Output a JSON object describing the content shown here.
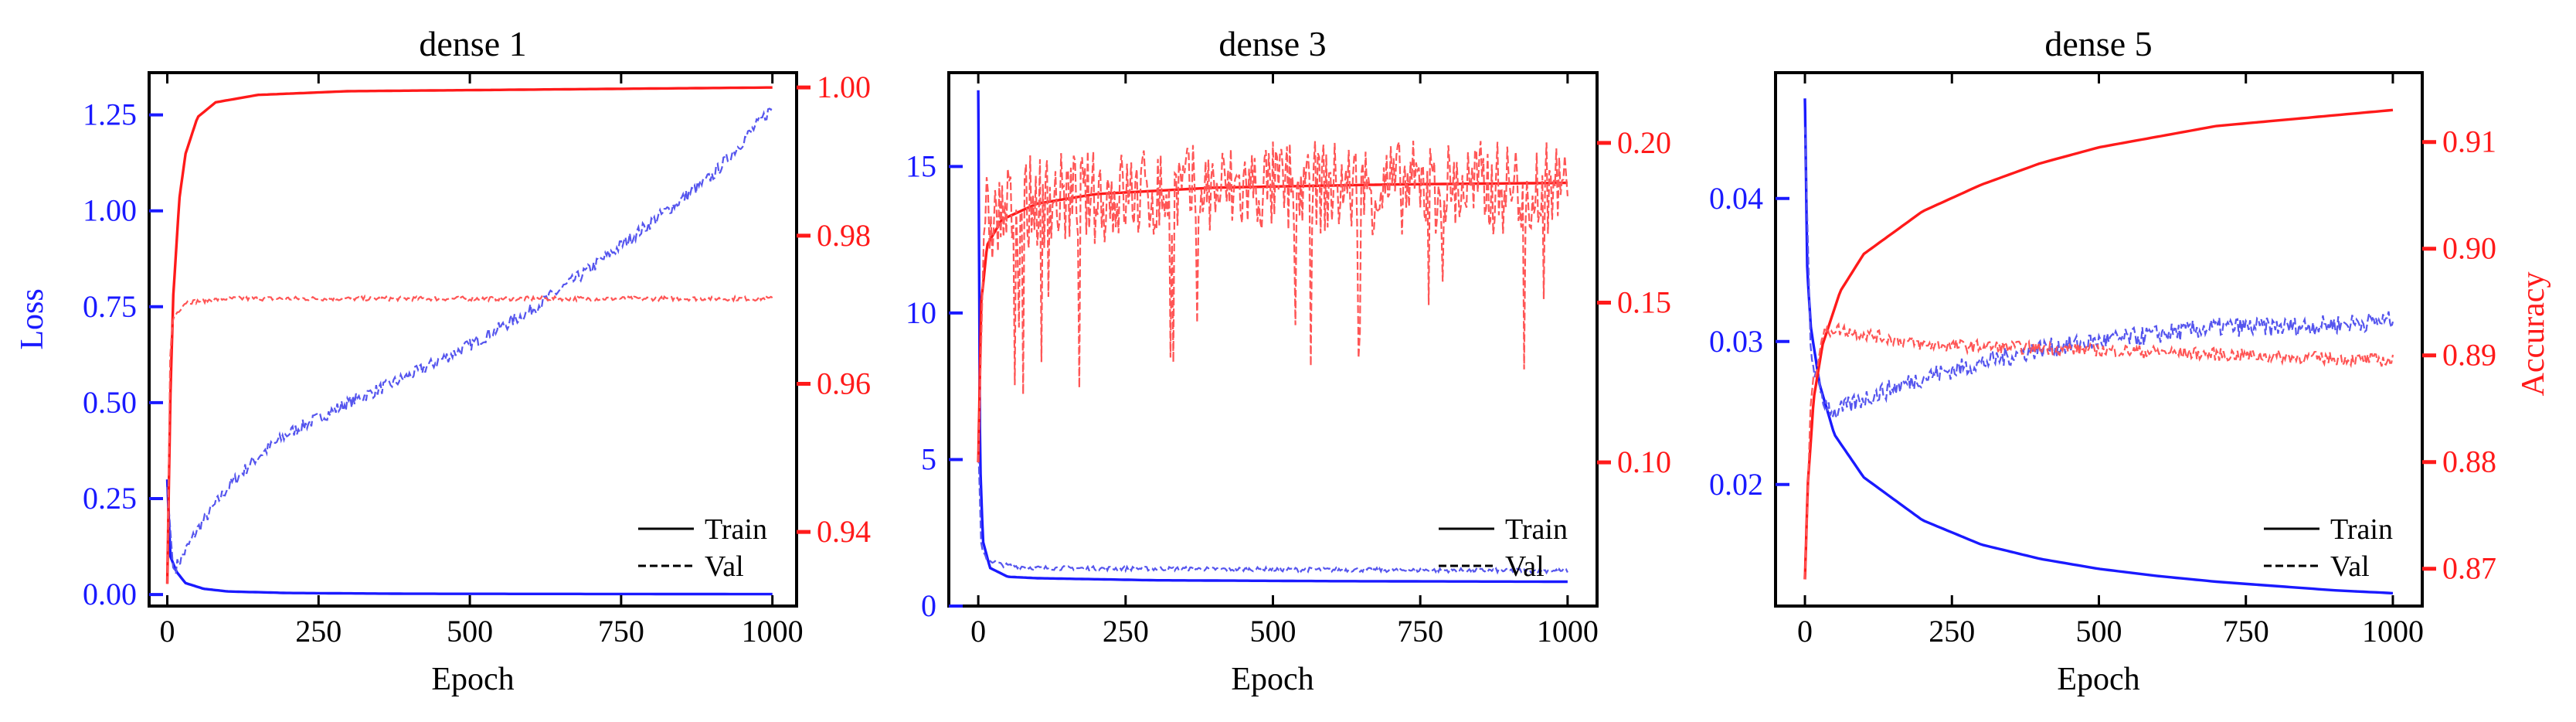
{
  "figure": {
    "charts": [
      {
        "title": "dense 1"
      },
      {
        "title": "dense 3"
      },
      {
        "title": "dense 5"
      }
    ]
  },
  "chart_data": [
    {
      "type": "line",
      "title": "dense 1",
      "xlabel": "Epoch",
      "ylabel_left": "Loss",
      "ylabel_right": "",
      "x_ticks": [
        0,
        250,
        500,
        750,
        1000
      ],
      "xlim": [
        -30,
        1040
      ],
      "left_ylim": [
        -0.03,
        1.36
      ],
      "left_ticks": [
        0.0,
        0.25,
        0.5,
        0.75,
        1.0,
        1.25
      ],
      "left_tick_labels": [
        "0.00",
        "0.25",
        "0.50",
        "0.75",
        "1.00",
        "1.25"
      ],
      "right_ylim": [
        0.93,
        1.002
      ],
      "right_ticks": [
        0.94,
        0.96,
        0.98,
        1.0
      ],
      "right_tick_labels": [
        "0.94",
        "0.96",
        "0.98",
        "1.00"
      ],
      "legend": {
        "position": "bottom-right",
        "entries": [
          "Train",
          "Val"
        ]
      },
      "series": [
        {
          "name": "Train",
          "metric": "loss",
          "axis": "left",
          "style": "solid",
          "points": [
            [
              0,
              0.3
            ],
            [
              5,
              0.1
            ],
            [
              15,
              0.06
            ],
            [
              30,
              0.03
            ],
            [
              60,
              0.015
            ],
            [
              100,
              0.008
            ],
            [
              200,
              0.004
            ],
            [
              400,
              0.002
            ],
            [
              700,
              0.0015
            ],
            [
              1000,
              0.001
            ]
          ]
        },
        {
          "name": "Val",
          "metric": "loss",
          "axis": "left",
          "style": "dashed",
          "points": [
            [
              0,
              0.28
            ],
            [
              10,
              0.06
            ],
            [
              25,
              0.1
            ],
            [
              50,
              0.17
            ],
            [
              100,
              0.28
            ],
            [
              150,
              0.36
            ],
            [
              200,
              0.42
            ],
            [
              300,
              0.5
            ],
            [
              400,
              0.57
            ],
            [
              500,
              0.65
            ],
            [
              600,
              0.74
            ],
            [
              700,
              0.85
            ],
            [
              800,
              0.97
            ],
            [
              900,
              1.09
            ],
            [
              1000,
              1.27
            ]
          ]
        },
        {
          "name": "Train",
          "metric": "accuracy",
          "axis": "right",
          "style": "solid",
          "points": [
            [
              0,
              0.933
            ],
            [
              5,
              0.958
            ],
            [
              10,
              0.972
            ],
            [
              20,
              0.985
            ],
            [
              30,
              0.991
            ],
            [
              50,
              0.996
            ],
            [
              80,
              0.998
            ],
            [
              150,
              0.999
            ],
            [
              300,
              0.9995
            ],
            [
              1000,
              1.0
            ]
          ]
        },
        {
          "name": "Val",
          "metric": "accuracy",
          "axis": "right",
          "style": "dashed",
          "points": [
            [
              0,
              0.933
            ],
            [
              5,
              0.965
            ],
            [
              10,
              0.969
            ],
            [
              30,
              0.971
            ],
            [
              100,
              0.9715
            ],
            [
              500,
              0.9715
            ],
            [
              1000,
              0.9715
            ]
          ]
        }
      ]
    },
    {
      "type": "line",
      "title": "dense 3",
      "xlabel": "Epoch",
      "ylabel_left": "",
      "ylabel_right": "",
      "x_ticks": [
        0,
        250,
        500,
        750,
        1000
      ],
      "xlim": [
        -50,
        1050
      ],
      "left_ylim": [
        0,
        18.2
      ],
      "left_ticks": [
        0,
        5,
        10,
        15
      ],
      "left_tick_labels": [
        "0",
        "5",
        "10",
        "15"
      ],
      "right_ylim": [
        0.055,
        0.222
      ],
      "right_ticks": [
        0.1,
        0.15,
        0.2
      ],
      "right_tick_labels": [
        "0.10",
        "0.15",
        "0.20"
      ],
      "legend": {
        "position": "bottom-right",
        "entries": [
          "Train",
          "Val"
        ]
      },
      "series": [
        {
          "name": "Train",
          "metric": "loss",
          "axis": "left",
          "style": "solid",
          "points": [
            [
              0,
              17.6
            ],
            [
              3,
              5.0
            ],
            [
              8,
              2.2
            ],
            [
              20,
              1.3
            ],
            [
              50,
              1.0
            ],
            [
              100,
              0.95
            ],
            [
              300,
              0.88
            ],
            [
              600,
              0.85
            ],
            [
              1000,
              0.83
            ]
          ]
        },
        {
          "name": "Val",
          "metric": "loss",
          "axis": "left",
          "style": "dashed",
          "points": [
            [
              0,
              5.5
            ],
            [
              5,
              2.0
            ],
            [
              15,
              1.6
            ],
            [
              40,
              1.4
            ],
            [
              100,
              1.3
            ],
            [
              500,
              1.25
            ],
            [
              1000,
              1.2
            ]
          ]
        },
        {
          "name": "Train",
          "metric": "accuracy",
          "axis": "right",
          "style": "solid",
          "points": [
            [
              0,
              0.1
            ],
            [
              5,
              0.15
            ],
            [
              15,
              0.168
            ],
            [
              40,
              0.176
            ],
            [
              100,
              0.181
            ],
            [
              200,
              0.184
            ],
            [
              400,
              0.186
            ],
            [
              700,
              0.187
            ],
            [
              1000,
              0.1875
            ]
          ]
        },
        {
          "name": "Val",
          "metric": "accuracy",
          "axis": "right",
          "style": "dashed",
          "points": [
            [
              0,
              0.1
            ],
            [
              10,
              0.175
            ],
            [
              100,
              0.182
            ],
            [
              500,
              0.186
            ],
            [
              1000,
              0.186
            ]
          ]
        }
      ]
    },
    {
      "type": "line",
      "title": "dense 5",
      "xlabel": "Epoch",
      "ylabel_left": "",
      "ylabel_right": "Accuracy",
      "x_ticks": [
        0,
        250,
        500,
        750,
        1000
      ],
      "xlim": [
        -50,
        1050
      ],
      "left_ylim": [
        0.0115,
        0.0488
      ],
      "left_ticks": [
        0.02,
        0.03,
        0.04
      ],
      "left_tick_labels": [
        "0.02",
        "0.03",
        "0.04"
      ],
      "right_ylim": [
        0.8665,
        0.9165
      ],
      "right_ticks": [
        0.87,
        0.88,
        0.89,
        0.9,
        0.91
      ],
      "right_tick_labels": [
        "0.87",
        "0.88",
        "0.89",
        "0.90",
        "0.91"
      ],
      "legend": {
        "position": "bottom-right",
        "entries": [
          "Train",
          "Val"
        ]
      },
      "series": [
        {
          "name": "Train",
          "metric": "loss",
          "axis": "left",
          "style": "solid",
          "points": [
            [
              0,
              0.047
            ],
            [
              4,
              0.035
            ],
            [
              10,
              0.031
            ],
            [
              25,
              0.027
            ],
            [
              50,
              0.0235
            ],
            [
              100,
              0.0205
            ],
            [
              200,
              0.0175
            ],
            [
              300,
              0.0158
            ],
            [
              400,
              0.0148
            ],
            [
              500,
              0.0141
            ],
            [
              600,
              0.0136
            ],
            [
              700,
              0.0132
            ],
            [
              800,
              0.0129
            ],
            [
              900,
              0.0126
            ],
            [
              1000,
              0.0124
            ]
          ]
        },
        {
          "name": "Val",
          "metric": "loss",
          "axis": "left",
          "style": "dashed",
          "points": [
            [
              0,
              0.045
            ],
            [
              10,
              0.029
            ],
            [
              30,
              0.026
            ],
            [
              50,
              0.025
            ],
            [
              100,
              0.026
            ],
            [
              200,
              0.0275
            ],
            [
              300,
              0.0285
            ],
            [
              400,
              0.0295
            ],
            [
              500,
              0.03
            ],
            [
              600,
              0.0305
            ],
            [
              700,
              0.031
            ],
            [
              800,
              0.031
            ],
            [
              900,
              0.0312
            ],
            [
              1000,
              0.0315
            ]
          ]
        },
        {
          "name": "Train",
          "metric": "accuracy",
          "axis": "right",
          "style": "solid",
          "points": [
            [
              0,
              0.869
            ],
            [
              5,
              0.878
            ],
            [
              15,
              0.886
            ],
            [
              30,
              0.891
            ],
            [
              60,
              0.896
            ],
            [
              100,
              0.8995
            ],
            [
              200,
              0.9035
            ],
            [
              300,
              0.906
            ],
            [
              400,
              0.908
            ],
            [
              500,
              0.9095
            ],
            [
              600,
              0.9105
            ],
            [
              700,
              0.9115
            ],
            [
              800,
              0.912
            ],
            [
              900,
              0.9125
            ],
            [
              1000,
              0.913
            ]
          ]
        },
        {
          "name": "Val",
          "metric": "accuracy",
          "axis": "right",
          "style": "dashed",
          "points": [
            [
              0,
              0.869
            ],
            [
              10,
              0.886
            ],
            [
              30,
              0.892
            ],
            [
              50,
              0.8925
            ],
            [
              100,
              0.892
            ],
            [
              200,
              0.891
            ],
            [
              500,
              0.8905
            ],
            [
              1000,
              0.8895
            ]
          ]
        }
      ]
    }
  ]
}
